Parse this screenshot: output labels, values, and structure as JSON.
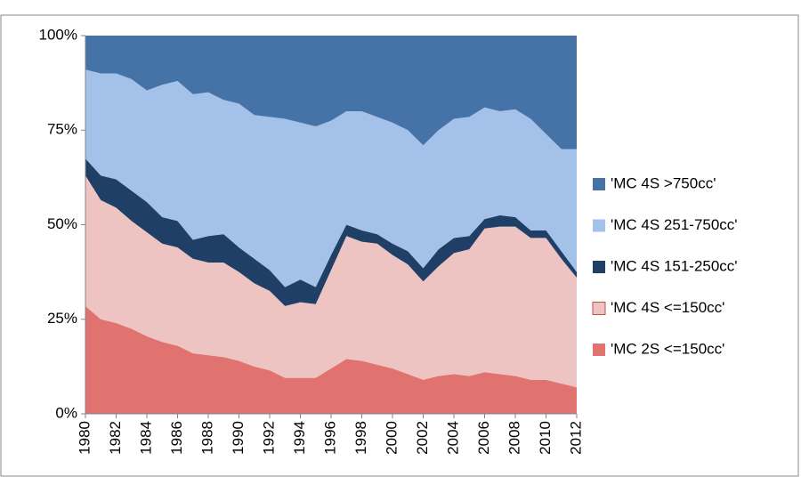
{
  "chart_data": {
    "type": "stacked_area_100",
    "x": [
      1980,
      1981,
      1982,
      1983,
      1984,
      1985,
      1986,
      1987,
      1988,
      1989,
      1990,
      1991,
      1992,
      1993,
      1994,
      1995,
      1996,
      1997,
      1998,
      1999,
      2000,
      2001,
      2002,
      2003,
      2004,
      2005,
      2006,
      2007,
      2008,
      2009,
      2010,
      2011,
      2012
    ],
    "xlim": [
      1980,
      2012
    ],
    "xticks": [
      1980,
      1982,
      1984,
      1986,
      1988,
      1990,
      1992,
      1994,
      1996,
      1998,
      2000,
      2002,
      2004,
      2006,
      2008,
      2010,
      2012
    ],
    "ylim": [
      0,
      100
    ],
    "yticks": [
      {
        "value": 0,
        "label": "0%"
      },
      {
        "value": 25,
        "label": "25%"
      },
      {
        "value": 50,
        "label": "50%"
      },
      {
        "value": 75,
        "label": "75%"
      },
      {
        "value": 100,
        "label": "100%"
      }
    ],
    "grid": false,
    "legend": "right",
    "series": [
      {
        "name": "'MC 2S <=150cc'",
        "color": "#e0736f",
        "values": [
          28.5,
          25,
          24,
          22.5,
          20.5,
          19,
          18,
          16,
          15.5,
          15,
          14,
          12.5,
          11.5,
          9.5,
          9.5,
          9.5,
          12,
          14.5,
          14,
          13,
          12,
          10.5,
          9,
          10,
          10.5,
          10,
          11,
          10.5,
          10,
          9,
          9,
          8,
          7
        ]
      },
      {
        "name": "'MC 4S <=150cc'",
        "color": "#eec4c3",
        "values": [
          34.5,
          31.5,
          30.5,
          28.5,
          27.5,
          26,
          26,
          25,
          24.5,
          25,
          23.5,
          22,
          21,
          19,
          20,
          19.5,
          26,
          32.5,
          31.5,
          32,
          30,
          29,
          26,
          29,
          32,
          33.5,
          38,
          39,
          39.5,
          37.5,
          37.5,
          33,
          29
        ]
      },
      {
        "name": "'MC 4S 151-250cc'",
        "color": "#1f3f66",
        "values": [
          4.5,
          6.5,
          7.5,
          8,
          8,
          7,
          7,
          5,
          7,
          7.5,
          6.5,
          6.5,
          5.5,
          5,
          6,
          4.5,
          4,
          3,
          3,
          2.5,
          3,
          3.5,
          3.5,
          4.5,
          4,
          3.5,
          2.5,
          3,
          2.5,
          2,
          2,
          2,
          1.5
        ]
      },
      {
        "name": "'MC 4S 251-750cc'",
        "color": "#a3c1e9",
        "values": [
          23.5,
          27,
          28,
          29.5,
          29.5,
          35,
          37,
          38.5,
          38,
          35.5,
          38,
          38,
          40.5,
          44.5,
          41.5,
          42.5,
          35.5,
          30,
          31.5,
          31,
          32,
          32,
          32.5,
          31.5,
          31.5,
          31.5,
          29.5,
          27.5,
          28.5,
          29.5,
          25.5,
          27,
          32.5
        ]
      },
      {
        "name": "'MC 4S >750cc'",
        "color": "#4572a7",
        "values": [
          9,
          10,
          10,
          11.5,
          14.5,
          13,
          12,
          15.5,
          15,
          17,
          18,
          21,
          21.5,
          22,
          23,
          24,
          22.5,
          20,
          20,
          21.5,
          23,
          25,
          29,
          25,
          22,
          21.5,
          19,
          20,
          19.5,
          22,
          26,
          30,
          30
        ]
      }
    ]
  }
}
